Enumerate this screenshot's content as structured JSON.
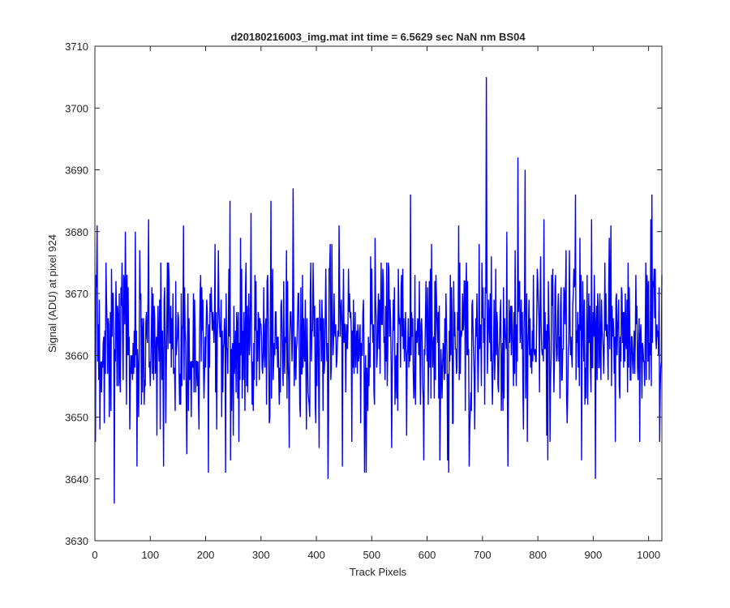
{
  "chart_data": {
    "type": "line",
    "title": "d20180216003_img.mat int time = 6.5629 sec  NaN nm BS04",
    "xlabel": "Track Pixels",
    "ylabel": "Signal (ADU) at pixel 924",
    "xlim": [
      0,
      1024
    ],
    "ylim": [
      3630,
      3710
    ],
    "xticks": [
      0,
      100,
      200,
      300,
      400,
      500,
      600,
      700,
      800,
      900,
      1000
    ],
    "yticks": [
      3630,
      3640,
      3650,
      3660,
      3670,
      3680,
      3690,
      3700,
      3710
    ],
    "grid": false,
    "series": [
      {
        "color": "#0000ff",
        "noise_description": "approximately 1024 points of noise around 3663 ADU",
        "x_start": 1,
        "x_step": 1,
        "mean": 3663,
        "std": 7,
        "n_points": 1024,
        "notable_points": [
          {
            "x": 1,
            "y": 3646
          },
          {
            "x": 4,
            "y": 3681
          },
          {
            "x": 12,
            "y": 3654
          },
          {
            "x": 35,
            "y": 3636
          },
          {
            "x": 76,
            "y": 3642
          },
          {
            "x": 97,
            "y": 3682
          },
          {
            "x": 124,
            "y": 3642
          },
          {
            "x": 166,
            "y": 3644
          },
          {
            "x": 236,
            "y": 3641
          },
          {
            "x": 244,
            "y": 3685
          },
          {
            "x": 318,
            "y": 3685
          },
          {
            "x": 358,
            "y": 3687
          },
          {
            "x": 405,
            "y": 3645
          },
          {
            "x": 421,
            "y": 3640
          },
          {
            "x": 487,
            "y": 3641
          },
          {
            "x": 570,
            "y": 3686
          },
          {
            "x": 637,
            "y": 3643
          },
          {
            "x": 676,
            "y": 3642
          },
          {
            "x": 707,
            "y": 3705
          },
          {
            "x": 764,
            "y": 3692
          },
          {
            "x": 777,
            "y": 3690
          },
          {
            "x": 818,
            "y": 3643
          },
          {
            "x": 868,
            "y": 3686
          },
          {
            "x": 879,
            "y": 3643
          },
          {
            "x": 904,
            "y": 3640
          },
          {
            "x": 1006,
            "y": 3686
          },
          {
            "x": 1024,
            "y": 3673
          }
        ]
      }
    ]
  }
}
